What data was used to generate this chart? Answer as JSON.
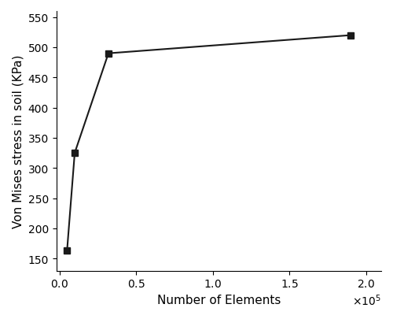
{
  "x": [
    5000,
    10000,
    32000,
    190000
  ],
  "y": [
    163,
    325,
    490,
    520
  ],
  "xlabel": "Number of Elements",
  "ylabel": "Von Mises stress in soil (KPa)",
  "xlim": [
    -2000,
    210000
  ],
  "ylim": [
    130,
    560
  ],
  "xticks": [
    0,
    50000,
    100000,
    150000,
    200000
  ],
  "yticks": [
    150,
    200,
    250,
    300,
    350,
    400,
    450,
    500,
    550
  ],
  "line_color": "#1a1a1a",
  "marker": "s",
  "marker_color": "#1a1a1a",
  "marker_size": 6,
  "linewidth": 1.5,
  "background_color": "#ffffff",
  "xlabel_fontsize": 11,
  "ylabel_fontsize": 11,
  "tick_fontsize": 10
}
